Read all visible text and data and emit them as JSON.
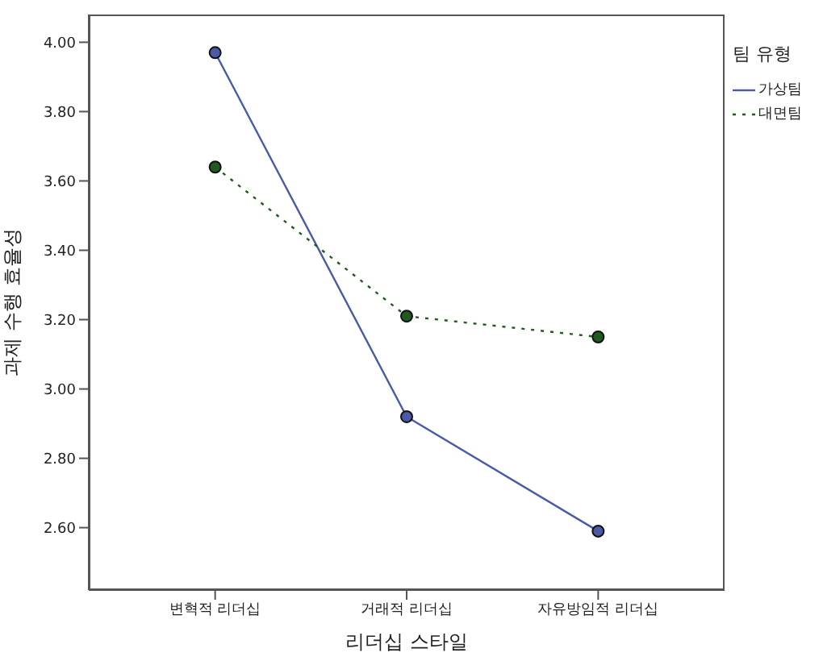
{
  "chart_data": {
    "type": "line",
    "xlabel": "리더십 스타일",
    "ylabel": "과제 수행 효율성",
    "legend_title": "팀 유형",
    "categories": [
      "변혁적 리더십",
      "거래적 리더십",
      "자유방임적 리더십"
    ],
    "series": [
      {
        "name": "가상팀",
        "color": "#4a5aa8",
        "line_style": "solid",
        "values": [
          3.97,
          2.92,
          2.59
        ]
      },
      {
        "name": "대면팀",
        "color": "#1f5a1f",
        "line_style": "dotted",
        "values": [
          3.64,
          3.21,
          3.15
        ]
      }
    ],
    "ylim": [
      2.42,
      4.08
    ],
    "yticks": [
      {
        "value": 2.6,
        "label": "2.60"
      },
      {
        "value": 2.8,
        "label": "2.80"
      },
      {
        "value": 3.0,
        "label": "3.00"
      },
      {
        "value": 3.2,
        "label": "3.20"
      },
      {
        "value": 3.4,
        "label": "3.40"
      },
      {
        "value": 3.6,
        "label": "3.60"
      },
      {
        "value": 3.8,
        "label": "3.80"
      },
      {
        "value": 4.0,
        "label": "4.00"
      }
    ],
    "grid": false,
    "legend": "top right",
    "marker": "circle"
  }
}
